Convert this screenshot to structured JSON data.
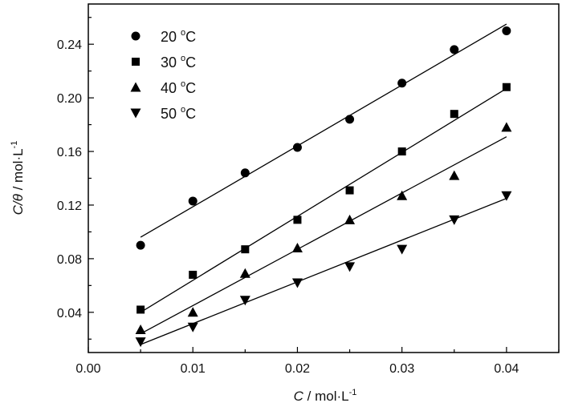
{
  "chart_data": {
    "type": "scatter",
    "title": "",
    "xlabel": "C / mol·L-1",
    "xlabel_parts": {
      "var": "C",
      "unit": " / mol·L",
      "exp": "-1"
    },
    "ylabel": "C/θ / mol·L-1",
    "ylabel_parts": {
      "var": "C/θ",
      "unit": " / mol·L",
      "exp": "-1"
    },
    "xlim": [
      0.0,
      0.045
    ],
    "ylim": [
      0.01,
      0.27
    ],
    "xticks": [
      "0.00",
      "0.01",
      "0.02",
      "0.03",
      "0.04"
    ],
    "yticks": [
      "0.04",
      "0.08",
      "0.12",
      "0.16",
      "0.20",
      "0.24"
    ],
    "grid": false,
    "legend_position": "top-left",
    "x": [
      0.005,
      0.01,
      0.015,
      0.02,
      0.025,
      0.03,
      0.035,
      0.04
    ],
    "series": [
      {
        "name": "20 °C",
        "label_num": "20 ",
        "label_deg": "o",
        "label_unit": "C",
        "marker": "circle",
        "values": [
          0.09,
          0.123,
          0.144,
          0.163,
          0.184,
          0.211,
          0.236,
          0.25
        ],
        "fit": [
          [
            0.005,
            0.096
          ],
          [
            0.04,
            0.255
          ]
        ]
      },
      {
        "name": "30 °C",
        "label_num": "30 ",
        "label_deg": "o",
        "label_unit": "C",
        "marker": "square",
        "values": [
          0.042,
          0.068,
          0.087,
          0.109,
          0.131,
          0.16,
          0.188,
          0.208
        ],
        "fit": [
          [
            0.005,
            0.04
          ],
          [
            0.04,
            0.207
          ]
        ]
      },
      {
        "name": "40 °C",
        "label_num": "40 ",
        "label_deg": "o",
        "label_unit": "C",
        "marker": "triangle-up",
        "values": [
          0.027,
          0.04,
          0.069,
          0.088,
          0.109,
          0.127,
          0.142,
          0.178
        ],
        "fit": [
          [
            0.005,
            0.024
          ],
          [
            0.04,
            0.171
          ]
        ]
      },
      {
        "name": "50 °C",
        "label_num": "50 ",
        "label_deg": "o",
        "label_unit": "C",
        "marker": "triangle-down",
        "values": [
          0.018,
          0.029,
          0.049,
          0.062,
          0.074,
          0.087,
          0.109,
          0.127
        ],
        "fit": [
          [
            0.005,
            0.016
          ],
          [
            0.04,
            0.125
          ]
        ]
      }
    ]
  }
}
